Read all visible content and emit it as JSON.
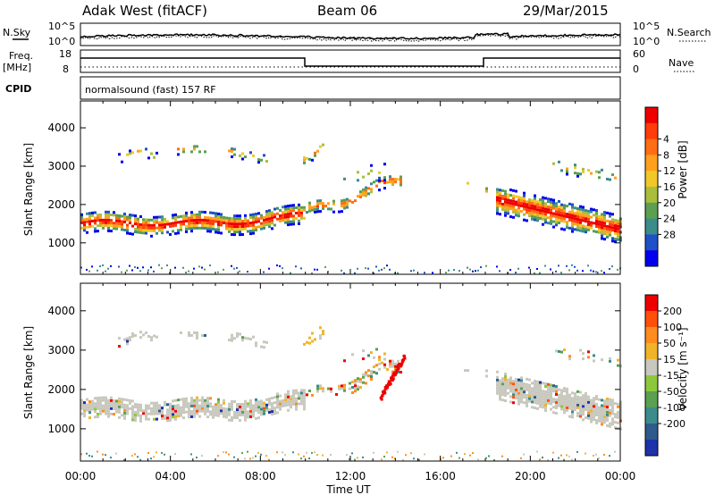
{
  "header": {
    "station": "Adak West (fitACF)",
    "beam": "Beam 06",
    "date": "29/Mar/2015"
  },
  "top_panels": {
    "nsky_label": "N.Sky",
    "nsky_ticks": [
      "10^5",
      "10^0"
    ],
    "nsearch_label": "N.Search",
    "freq_label_line1": "Freq.",
    "freq_label_line2": "[MHz]",
    "freq_ticks": [
      "18",
      "8"
    ],
    "nave_label": "Nave",
    "nave_ticks": [
      "60",
      "0"
    ],
    "cpid_label": "CPID",
    "cpid_text": "normalsound (fast) 157 RF"
  },
  "chart_data": [
    {
      "type": "heatmap",
      "name": "power",
      "ylabel": "Slant Range [km]",
      "xlabel": "",
      "x_ticks": [
        "00:00",
        "04:00",
        "08:00",
        "12:00",
        "16:00",
        "20:00",
        "00:00"
      ],
      "x_range_hours": [
        0,
        24
      ],
      "y_ticks": [
        1000,
        2000,
        3000,
        4000
      ],
      "ylim": [
        180,
        4700
      ],
      "colorbar": {
        "label": "Power [dB]",
        "ticks": [
          "4",
          "8",
          "12",
          "16",
          "20",
          "24",
          "28"
        ],
        "colors": [
          "#0000ee",
          "#1e50c8",
          "#3c8c8c",
          "#5aa050",
          "#aabe3c",
          "#f0c828",
          "#ffa01e",
          "#ff6e14",
          "#ff3c0a",
          "#ee0000"
        ]
      }
    },
    {
      "type": "heatmap",
      "name": "velocity",
      "ylabel": "Slant Range [km]",
      "xlabel": "Time UT",
      "x_ticks": [
        "00:00",
        "04:00",
        "08:00",
        "12:00",
        "16:00",
        "20:00",
        "00:00"
      ],
      "x_range_hours": [
        0,
        24
      ],
      "y_ticks": [
        1000,
        2000,
        3000,
        4000
      ],
      "ylim": [
        180,
        4700
      ],
      "colorbar": {
        "label": "Velocity [m s⁻¹]",
        "ticks": [
          "200",
          "100",
          "50",
          "15",
          "-15",
          "-50",
          "-100",
          "-200"
        ],
        "colors": [
          "#1e32aa",
          "#2f5a8c",
          "#3c8c8c",
          "#5aa050",
          "#8cc83c",
          "#c8c8be",
          "#f0b428",
          "#ff8c1e",
          "#ff500a",
          "#ee0000"
        ]
      }
    }
  ]
}
